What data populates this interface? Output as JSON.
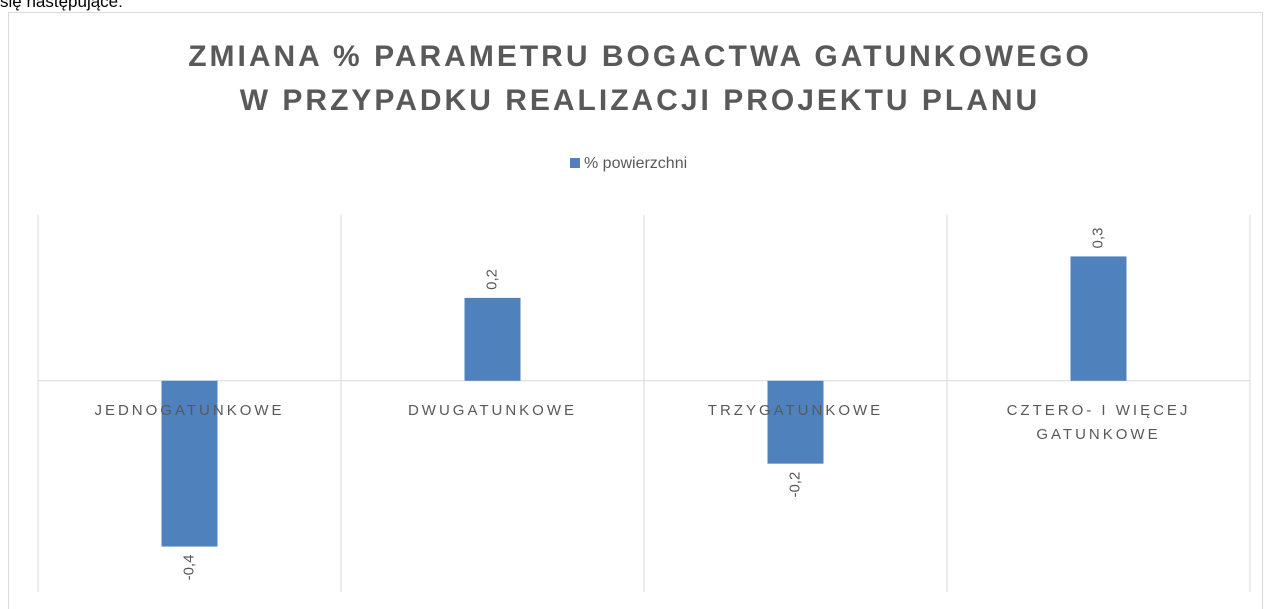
{
  "page_text": "się następujące:",
  "chart_data": {
    "type": "bar",
    "title": [
      "ZMIANA % PARAMETRU BOGACTWA GATUNKOWEGO",
      "W PRZYPADKU REALIZACJI PROJEKTU PLANU"
    ],
    "categories": [
      "JEDNOGATUNKOWE",
      "DWUGATUNKOWE",
      "TRZYGATUNKOWE",
      "CZTERO- I WIĘCEJ GATUNKOWE"
    ],
    "series": [
      {
        "name": "% powierzchni",
        "color": "#4f81bd",
        "values": [
          -0.4,
          0.2,
          -0.2,
          0.3
        ],
        "value_labels": [
          "-0,4",
          "0,2",
          "-0,2",
          "0,3"
        ]
      }
    ],
    "ylim": [
      -0.5,
      0.4
    ],
    "legend": "top"
  }
}
